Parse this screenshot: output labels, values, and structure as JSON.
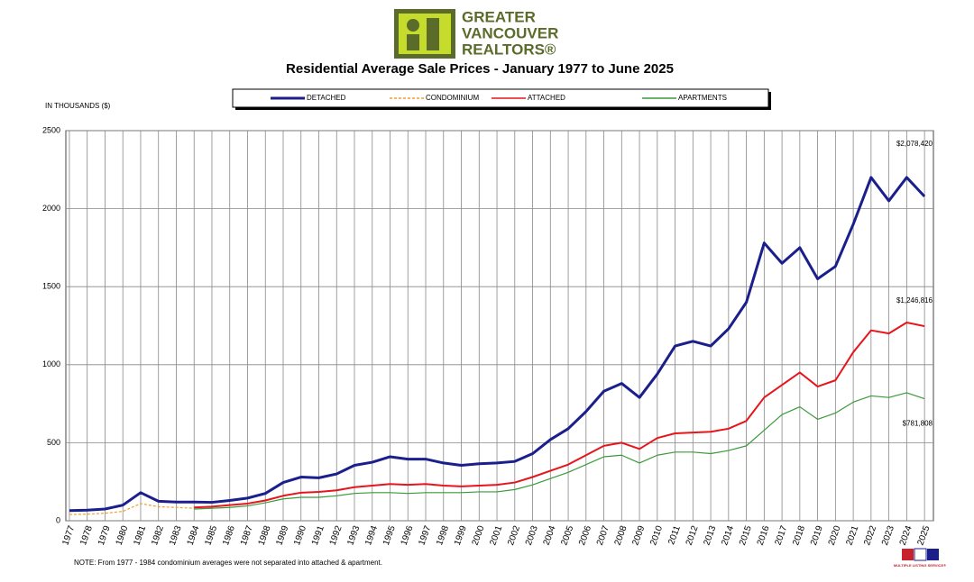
{
  "chart_data": {
    "type": "line",
    "logo": [
      "GREATER",
      "VANCOUVER",
      "REALTORS®"
    ],
    "title": "Residential Average Sale Prices  -  January 1977 to June 2025",
    "y_label": "IN THOUSANDS ($)",
    "x": [
      1977,
      1978,
      1979,
      1980,
      1981,
      1982,
      1983,
      1984,
      1985,
      1986,
      1987,
      1988,
      1989,
      1990,
      1991,
      1992,
      1993,
      1994,
      1995,
      1996,
      1997,
      1998,
      1999,
      2000,
      2001,
      2002,
      2003,
      2004,
      2005,
      2006,
      2007,
      2008,
      2009,
      2010,
      2011,
      2012,
      2013,
      2014,
      2015,
      2016,
      2017,
      2018,
      2019,
      2020,
      2021,
      2022,
      2023,
      2024,
      2025
    ],
    "series": [
      {
        "name": "DETACHED",
        "color": "#1a1f8c",
        "values": [
          65,
          68,
          75,
          100,
          180,
          125,
          120,
          120,
          118,
          130,
          145,
          175,
          245,
          280,
          275,
          300,
          355,
          375,
          410,
          395,
          395,
          370,
          355,
          365,
          370,
          380,
          430,
          520,
          590,
          700,
          830,
          880,
          790,
          940,
          1120,
          1150,
          1120,
          1230,
          1400,
          1780,
          1650,
          1750,
          1550,
          1630,
          1900,
          2200,
          2050,
          2200,
          2078.42
        ]
      },
      {
        "name": "CONDOMINIUM",
        "color": "#f0a030",
        "dashed": true,
        "values": [
          40,
          42,
          48,
          60,
          110,
          90,
          85,
          80,
          null,
          null,
          null,
          null,
          null,
          null,
          null,
          null,
          null,
          null,
          null,
          null,
          null,
          null,
          null,
          null,
          null,
          null,
          null,
          null,
          null,
          null,
          null,
          null,
          null,
          null,
          null,
          null,
          null,
          null,
          null,
          null,
          null,
          null,
          null,
          null,
          null,
          null,
          null,
          null,
          null
        ]
      },
      {
        "name": "ATTACHED",
        "color": "#e8141b",
        "values": [
          null,
          null,
          null,
          null,
          null,
          null,
          null,
          85,
          90,
          100,
          110,
          130,
          160,
          180,
          185,
          195,
          215,
          225,
          235,
          230,
          235,
          225,
          220,
          225,
          230,
          245,
          280,
          320,
          360,
          420,
          480,
          500,
          460,
          530,
          560,
          565,
          570,
          590,
          640,
          790,
          870,
          950,
          860,
          900,
          1080,
          1220,
          1200,
          1270,
          1246.816
        ]
      },
      {
        "name": "APARTMENTS",
        "color": "#3a9a3a",
        "values": [
          null,
          null,
          null,
          null,
          null,
          null,
          null,
          75,
          80,
          85,
          95,
          115,
          140,
          150,
          150,
          160,
          175,
          180,
          180,
          175,
          180,
          180,
          180,
          185,
          185,
          200,
          230,
          270,
          310,
          360,
          410,
          420,
          370,
          420,
          440,
          440,
          430,
          450,
          480,
          580,
          680,
          730,
          650,
          690,
          760,
          800,
          790,
          820,
          781.808
        ]
      }
    ],
    "annotations": [
      "$2,078,420",
      "$1,246,816",
      "$781,808"
    ],
    "xlim": [
      1976.8,
      2025.5
    ],
    "xticks": [
      1977,
      1978,
      1979,
      1980,
      1981,
      1982,
      1983,
      1984,
      1985,
      1986,
      1987,
      1988,
      1989,
      1990,
      1991,
      1992,
      1993,
      1994,
      1995,
      1996,
      1997,
      1998,
      1999,
      2000,
      2001,
      2002,
      2003,
      2004,
      2005,
      2006,
      2007,
      2008,
      2009,
      2010,
      2011,
      2012,
      2013,
      2014,
      2015,
      2016,
      2017,
      2018,
      2019,
      2020,
      2021,
      2022,
      2023,
      2024,
      2025
    ],
    "ylim": [
      0,
      2500
    ],
    "yticks": [
      0,
      500,
      1000,
      1500,
      2000,
      2500
    ],
    "grid": true,
    "note": "NOTE:  From 1977 - 1984 condominium averages were not separated into attached & apartment.",
    "mls": "MULTIPLE LISTING SERVICE®"
  }
}
